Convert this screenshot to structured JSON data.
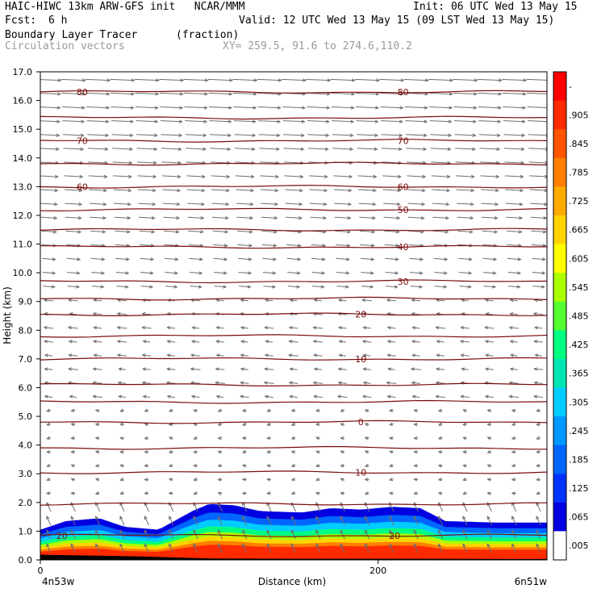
{
  "header": {
    "model_line": "HAIC-HIWC 13km ARW-GFS init   NCAR/MMM",
    "init_line": "Init: 06 UTC Wed 13 May 15",
    "fcst_label": "Fcst:",
    "fcst_value": "6 h",
    "valid_line": "Valid: 12 UTC Wed 13 May 15 (09 LST Wed 13 May 15)",
    "field_name": "Boundary Layer Tracer",
    "field_units": "(fraction)",
    "vector_label": "Circulation vectors",
    "xy_line": "XY= 259.5, 91.6 to 274.6,110.2"
  },
  "chart_data": {
    "type": "cross-section",
    "ylabel": "Height (km)",
    "xlabel": "Distance (km)",
    "ylim": [
      0,
      17
    ],
    "xlim": [
      0,
      300
    ],
    "yticks": [
      "0.0",
      "1.0",
      "2.0",
      "3.0",
      "4.0",
      "5.0",
      "6.0",
      "7.0",
      "8.0",
      "9.0",
      "10.0",
      "11.0",
      "12.0",
      "13.0",
      "14.0",
      "15.0",
      "16.0",
      "17.0"
    ],
    "xticks": [
      {
        "x": 0,
        "label": "0"
      },
      {
        "x": 200,
        "label": "200"
      }
    ],
    "endpoint_left": "4n53w",
    "endpoint_right": "6n51w",
    "colorbar": {
      "labels": [
        "-",
        ".905",
        ".845",
        ".785",
        ".725",
        ".665",
        ".605",
        ".545",
        ".485",
        ".425",
        ".365",
        ".305",
        ".245",
        ".185",
        ".125",
        ".065",
        ".005"
      ],
      "colors": [
        "#ff0000",
        "#ff2a00",
        "#ff5500",
        "#ff7f00",
        "#ffaa00",
        "#ffd400",
        "#ffff00",
        "#aaff00",
        "#55ff33",
        "#00ff80",
        "#00e6b3",
        "#00ccff",
        "#0099ff",
        "#0066ff",
        "#0033ff",
        "#0000e0",
        "#ffffff"
      ]
    },
    "isotherms": [
      {
        "label": "80",
        "z": 16.3
      },
      {
        "label": "",
        "z": 15.4
      },
      {
        "label": "70",
        "z": 14.6
      },
      {
        "label": "",
        "z": 13.8
      },
      {
        "label": "60",
        "z": 13.0
      },
      {
        "label": "50",
        "z": 12.2
      },
      {
        "label": "",
        "z": 11.5
      },
      {
        "label": "40",
        "z": 10.9
      },
      {
        "label": "30",
        "z": 9.7
      },
      {
        "label": "",
        "z": 9.1
      },
      {
        "label": "20",
        "z": 8.55
      },
      {
        "label": "",
        "z": 7.8
      },
      {
        "label": "10",
        "z": 7.0
      },
      {
        "label": "",
        "z": 6.1
      },
      {
        "label": "",
        "z": 5.5
      },
      {
        "label": "0",
        "z": 4.8
      },
      {
        "label": "",
        "z": 3.9
      },
      {
        "label": "10",
        "z": 3.05
      },
      {
        "label": "",
        "z": 1.95
      },
      {
        "label": "20",
        "z": 0.85
      }
    ],
    "tracer_top_km": [
      {
        "x": 0,
        "z": 1.05
      },
      {
        "x": 15,
        "z": 1.35
      },
      {
        "x": 35,
        "z": 1.45
      },
      {
        "x": 50,
        "z": 1.15
      },
      {
        "x": 70,
        "z": 1.05
      },
      {
        "x": 90,
        "z": 1.7
      },
      {
        "x": 100,
        "z": 1.95
      },
      {
        "x": 115,
        "z": 1.9
      },
      {
        "x": 130,
        "z": 1.7
      },
      {
        "x": 155,
        "z": 1.65
      },
      {
        "x": 172,
        "z": 1.8
      },
      {
        "x": 190,
        "z": 1.75
      },
      {
        "x": 208,
        "z": 1.85
      },
      {
        "x": 225,
        "z": 1.8
      },
      {
        "x": 240,
        "z": 1.35
      },
      {
        "x": 270,
        "z": 1.3
      },
      {
        "x": 300,
        "z": 1.3
      }
    ],
    "tracer_layers": [
      {
        "value": 0.065,
        "frac": 1.0
      },
      {
        "value": 0.185,
        "frac": 0.85
      },
      {
        "value": 0.305,
        "frac": 0.72
      },
      {
        "value": 0.425,
        "frac": 0.6
      },
      {
        "value": 0.545,
        "frac": 0.5
      },
      {
        "value": 0.665,
        "frac": 0.42
      },
      {
        "value": 0.785,
        "frac": 0.34
      },
      {
        "value": 0.905,
        "frac": 0.27
      }
    ]
  }
}
